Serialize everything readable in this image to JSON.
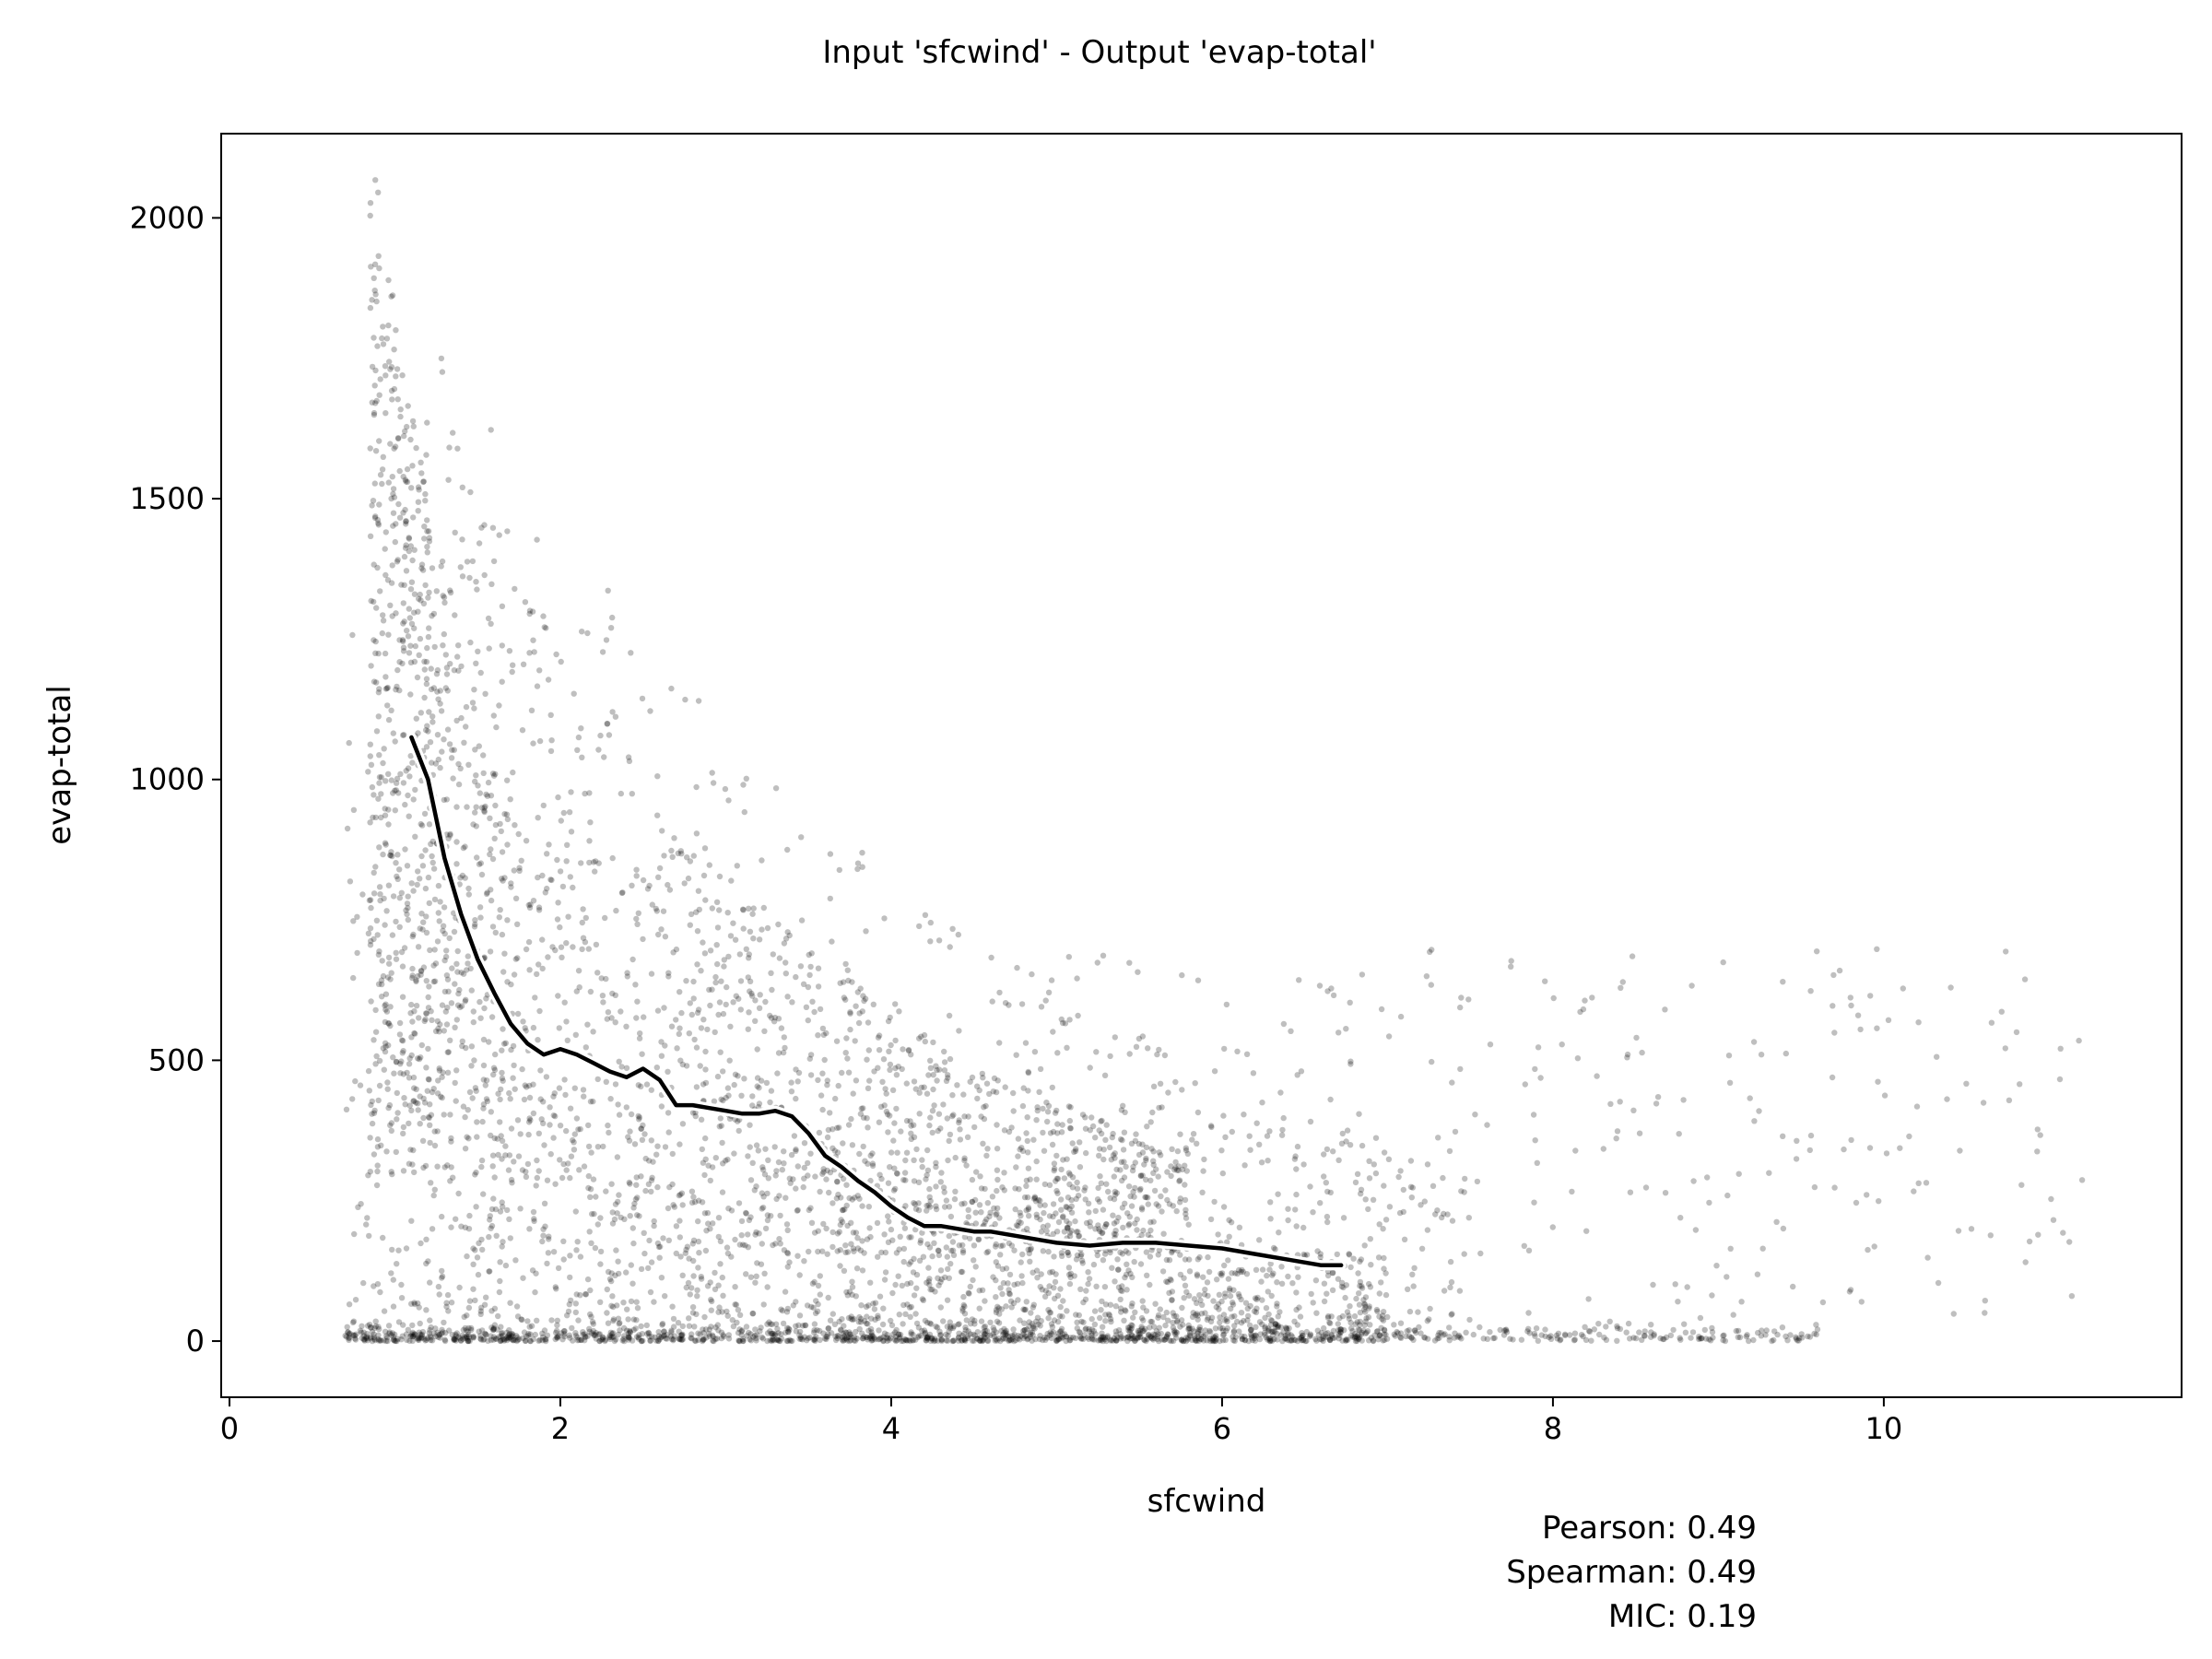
{
  "chart_data": {
    "type": "scatter",
    "title": "Input 'sfcwind' - Output 'evap-total'",
    "xlabel": "sfcwind",
    "ylabel": "evap-total",
    "xlim": [
      -0.05,
      11.8
    ],
    "ylim": [
      -100,
      2150
    ],
    "x_ticks": [
      0,
      2,
      4,
      6,
      8,
      10
    ],
    "y_ticks": [
      0,
      500,
      1000,
      1500,
      2000
    ],
    "grid": false,
    "point_color": "#000000",
    "point_opacity": 0.25,
    "trend_line": {
      "x": [
        1.1,
        1.2,
        1.3,
        1.4,
        1.5,
        1.6,
        1.7,
        1.8,
        1.9,
        2.0,
        2.1,
        2.2,
        2.3,
        2.4,
        2.5,
        2.6,
        2.7,
        2.8,
        2.9,
        3.0,
        3.1,
        3.2,
        3.3,
        3.4,
        3.5,
        3.6,
        3.7,
        3.8,
        3.9,
        4.0,
        4.1,
        4.2,
        4.3,
        4.4,
        4.5,
        4.6,
        4.8,
        5.0,
        5.2,
        5.4,
        5.6,
        5.8,
        6.0,
        6.2,
        6.4,
        6.6,
        6.72
      ],
      "y": [
        1075,
        1000,
        860,
        760,
        680,
        620,
        565,
        530,
        510,
        520,
        510,
        495,
        480,
        470,
        485,
        465,
        420,
        420,
        415,
        410,
        405,
        405,
        410,
        400,
        370,
        330,
        310,
        285,
        265,
        240,
        220,
        205,
        205,
        200,
        195,
        195,
        185,
        175,
        170,
        175,
        175,
        170,
        165,
        155,
        145,
        135,
        135
      ]
    },
    "annotations": [
      "Pearson: 0.49",
      "Spearman: 0.49",
      "MIC: 0.19"
    ]
  }
}
